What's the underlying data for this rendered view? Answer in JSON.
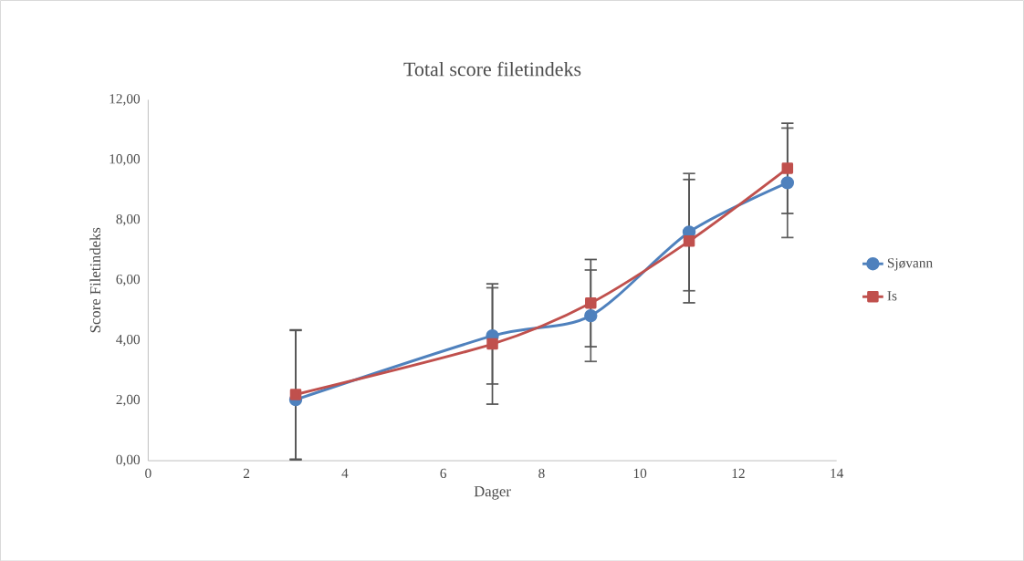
{
  "chart_data": {
    "type": "line",
    "title": "Total score filetindeks",
    "xlabel": "Dager",
    "ylabel": "Score Filetindeks",
    "x": [
      3,
      7,
      9,
      11,
      13
    ],
    "series": [
      {
        "name": "Sjøvann",
        "color": "#4f81bd",
        "marker": "circle",
        "values": [
          2.03,
          4.15,
          4.82,
          7.6,
          9.24
        ],
        "errors": [
          [
            0.03,
            4.33
          ],
          1.6,
          1.52,
          1.95,
          1.82
        ]
      },
      {
        "name": "Is",
        "color": "#c0504d",
        "marker": "square",
        "values": [
          2.2,
          3.88,
          5.24,
          7.3,
          9.72
        ],
        "errors": [
          2.15,
          2.0,
          1.45,
          2.05,
          1.5
        ]
      }
    ],
    "xlim": [
      0,
      14
    ],
    "xticks": [
      0,
      2,
      4,
      6,
      8,
      10,
      12,
      14
    ],
    "ylim": [
      0,
      12
    ],
    "yticks": [
      {
        "value": 0,
        "label": "0,00"
      },
      {
        "value": 2,
        "label": "2,00"
      },
      {
        "value": 4,
        "label": "4,00"
      },
      {
        "value": 6,
        "label": "6,00"
      },
      {
        "value": 8,
        "label": "8,00"
      },
      {
        "value": 10,
        "label": "10,00"
      },
      {
        "value": 12,
        "label": "12,00"
      }
    ],
    "legend": "right",
    "grid": false
  }
}
